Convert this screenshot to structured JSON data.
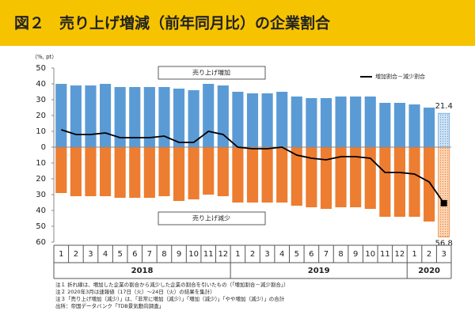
{
  "chart_data": {
    "type": "bar-line",
    "title": "図２　売り上げ増減（前年同月比）の企業割合",
    "y_unit": "（%, pt）",
    "categories": [
      "1",
      "2",
      "3",
      "4",
      "5",
      "6",
      "7",
      "8",
      "9",
      "10",
      "11",
      "12",
      "1",
      "2",
      "3",
      "4",
      "5",
      "6",
      "7",
      "8",
      "9",
      "10",
      "11",
      "12",
      "1",
      "2",
      "3"
    ],
    "year_labels": [
      "2018",
      "2019",
      "2020"
    ],
    "series": [
      {
        "name": "売り上げ増加",
        "type": "bar",
        "color": "#5b9bd5",
        "values": [
          40,
          39,
          39,
          40,
          38,
          38,
          38,
          38,
          37,
          36,
          40,
          39,
          35,
          34,
          34,
          35,
          32,
          31,
          31,
          32,
          32,
          32,
          28,
          28,
          27,
          25,
          21.4
        ]
      },
      {
        "name": "売り上げ減少",
        "type": "bar",
        "color": "#ed7d31",
        "values": [
          -29,
          -31,
          -31,
          -31,
          -32,
          -32,
          -32,
          -31,
          -34,
          -33,
          -30,
          -31,
          -35,
          -35,
          -35,
          -35,
          -37,
          -38,
          -39,
          -38,
          -38,
          -39,
          -44,
          -44,
          -44,
          -47,
          -56.8
        ],
        "value_labels": [
          null,
          null,
          null,
          null,
          null,
          null,
          null,
          null,
          null,
          null,
          null,
          null,
          null,
          null,
          null,
          null,
          null,
          null,
          null,
          null,
          null,
          null,
          null,
          null,
          null,
          null,
          "56.8"
        ]
      },
      {
        "name": "増加割合－減少割合",
        "type": "line",
        "color": "#000000",
        "values": [
          11,
          8,
          8,
          9,
          6,
          6,
          6,
          7,
          3,
          3,
          10,
          8,
          0,
          -1,
          -1,
          0,
          -5,
          -7,
          -8,
          -6,
          -6,
          -7,
          -16,
          -16,
          -17,
          -22,
          -35.4
        ]
      }
    ],
    "ylim": [
      -60,
      50
    ],
    "yticks": [
      {
        "value": -60,
        "label": "60"
      },
      {
        "value": -50,
        "label": "50"
      },
      {
        "value": -40,
        "label": "40"
      },
      {
        "value": -30,
        "label": "30"
      },
      {
        "value": -20,
        "label": "20"
      },
      {
        "value": -10,
        "label": "10"
      },
      0,
      10,
      20,
      30,
      40,
      50
    ],
    "notes": [
      "注１ 折れ線は、増加した企業の割合から減少した企業の割合を引いたもの（「増加割合－減少割合」）",
      "注２ 2020年3月は速報値（17日（火）～24日（火）の結果を集計）",
      "注３「売り上げ増加（減少）」は、「非常に増加（減少）」「増加（減少）」「やや増加（減少）」の合計",
      "出所：帝国データバンク「TDB景気動向調査」"
    ]
  }
}
